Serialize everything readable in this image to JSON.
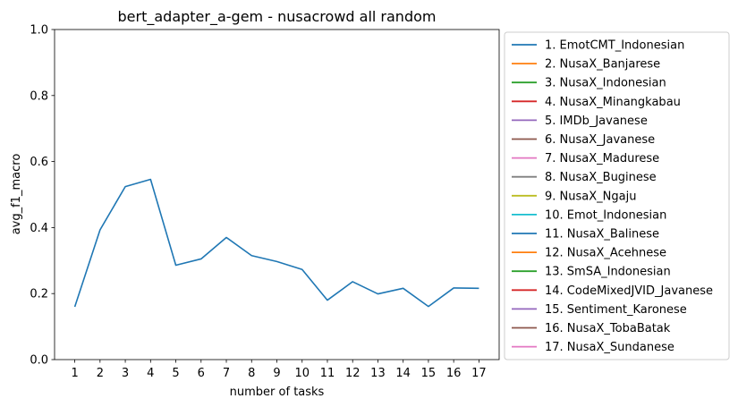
{
  "chart_data": {
    "type": "line",
    "title": "bert_adapter_a-gem - nusacrowd all random",
    "xlabel": "number of tasks",
    "ylabel": "avg_f1_macro",
    "x": [
      1,
      2,
      3,
      4,
      5,
      6,
      7,
      8,
      9,
      10,
      11,
      12,
      13,
      14,
      15,
      16,
      17
    ],
    "ylim": [
      0.0,
      1.0
    ],
    "yticks": [
      "0.0",
      "0.2",
      "0.4",
      "0.6",
      "0.8",
      "1.0"
    ],
    "xticks": [
      "1",
      "2",
      "3",
      "4",
      "5",
      "6",
      "7",
      "8",
      "9",
      "10",
      "11",
      "12",
      "13",
      "14",
      "15",
      "16",
      "17"
    ],
    "series": [
      {
        "name": "1. EmotCMT_Indonesian",
        "color": "#1f77b4",
        "values": [
          0.16,
          0.393,
          0.524,
          0.546,
          0.286,
          0.305,
          0.37,
          0.315,
          0.297,
          0.273,
          0.18,
          0.236,
          0.199,
          0.216,
          0.161,
          0.217,
          0.216
        ]
      }
    ],
    "legend": {
      "placement": "outside-right",
      "entries": [
        {
          "label": "1. EmotCMT_Indonesian",
          "color": "#1f77b4"
        },
        {
          "label": "2. NusaX_Banjarese",
          "color": "#ff7f0e"
        },
        {
          "label": "3. NusaX_Indonesian",
          "color": "#2ca02c"
        },
        {
          "label": "4. NusaX_Minangkabau",
          "color": "#d62728"
        },
        {
          "label": "5. IMDb_Javanese",
          "color": "#9467bd"
        },
        {
          "label": "6. NusaX_Javanese",
          "color": "#8c564b"
        },
        {
          "label": "7. NusaX_Madurese",
          "color": "#e377c2"
        },
        {
          "label": "8. NusaX_Buginese",
          "color": "#7f7f7f"
        },
        {
          "label": "9. NusaX_Ngaju",
          "color": "#bcbd22"
        },
        {
          "label": "10. Emot_Indonesian",
          "color": "#17becf"
        },
        {
          "label": "11. NusaX_Balinese",
          "color": "#1f77b4"
        },
        {
          "label": "12. NusaX_Acehnese",
          "color": "#ff7f0e"
        },
        {
          "label": "13. SmSA_Indonesian",
          "color": "#2ca02c"
        },
        {
          "label": "14. CodeMixedJVID_Javanese",
          "color": "#d62728"
        },
        {
          "label": "15. Sentiment_Karonese",
          "color": "#9467bd"
        },
        {
          "label": "16. NusaX_TobaBatak",
          "color": "#8c564b"
        },
        {
          "label": "17. NusaX_Sundanese",
          "color": "#e377c2"
        }
      ]
    },
    "grid": false
  }
}
